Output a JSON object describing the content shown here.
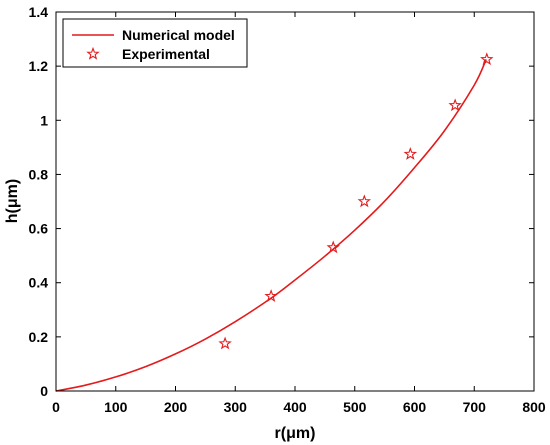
{
  "chart_data": {
    "type": "line",
    "title": "",
    "xlabel": "r(μm)",
    "ylabel": "h(μm)",
    "xlim": [
      0,
      800
    ],
    "ylim": [
      0,
      1.4
    ],
    "x_ticks": [
      0,
      100,
      200,
      300,
      400,
      500,
      600,
      700,
      800
    ],
    "y_ticks": [
      0,
      0.2,
      0.4,
      0.6,
      0.8,
      1,
      1.2,
      1.4
    ],
    "x_tick_labels": [
      "0",
      "100",
      "200",
      "300",
      "400",
      "500",
      "600",
      "700",
      "800"
    ],
    "y_tick_labels": [
      "0",
      "0.2",
      "0.4",
      "0.6",
      "0.8",
      "1",
      "1.2",
      "1.4"
    ],
    "grid": false,
    "legend_position": "top-left",
    "series": [
      {
        "name": "Numerical model",
        "kind": "line",
        "color": "#e41a1c",
        "x": [
          0,
          50,
          100,
          150,
          200,
          250,
          300,
          360,
          400,
          450,
          500,
          550,
          600,
          650,
          700,
          720
        ],
        "y": [
          0,
          0.022,
          0.052,
          0.09,
          0.137,
          0.192,
          0.256,
          0.343,
          0.41,
          0.498,
          0.594,
          0.701,
          0.825,
          0.961,
          1.13,
          1.225
        ]
      },
      {
        "name": "Experimental",
        "kind": "scatter",
        "marker": "star",
        "color": "#e41a1c",
        "x": [
          283,
          360,
          464,
          516,
          593,
          668,
          721
        ],
        "y": [
          0.175,
          0.35,
          0.53,
          0.7,
          0.875,
          1.055,
          1.225
        ]
      }
    ]
  }
}
